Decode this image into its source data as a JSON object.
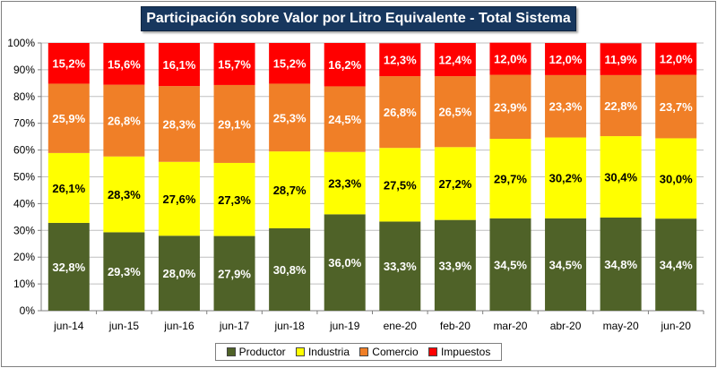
{
  "chart_data": {
    "type": "bar",
    "stacked": true,
    "title": "Participación sobre Valor por Litro Equivalente - Total Sistema",
    "categories": [
      "jun-14",
      "jun-15",
      "jun-16",
      "jun-17",
      "jun-18",
      "jun-19",
      "ene-20",
      "feb-20",
      "mar-20",
      "abr-20",
      "may-20",
      "jun-20"
    ],
    "ylim": [
      0,
      100
    ],
    "yticks": [
      "0%",
      "10%",
      "20%",
      "30%",
      "40%",
      "50%",
      "60%",
      "70%",
      "80%",
      "90%",
      "100%"
    ],
    "grid": true,
    "legend_position": "bottom",
    "series": [
      {
        "name": "Productor",
        "color": "#4f6228",
        "label_color": "#ffffff",
        "values": [
          32.8,
          29.3,
          28.0,
          27.9,
          30.8,
          36.0,
          33.3,
          33.9,
          34.5,
          34.5,
          34.8,
          34.4
        ],
        "labels": [
          "32,8%",
          "29,3%",
          "28,0%",
          "27,9%",
          "30,8%",
          "36,0%",
          "33,3%",
          "33,9%",
          "34,5%",
          "34,5%",
          "34,8%",
          "34,4%"
        ]
      },
      {
        "name": "Industria",
        "color": "#ffff00",
        "label_color": "#000000",
        "values": [
          26.1,
          28.3,
          27.6,
          27.3,
          28.7,
          23.3,
          27.5,
          27.2,
          29.7,
          30.2,
          30.4,
          30.0
        ],
        "labels": [
          "26,1%",
          "28,3%",
          "27,6%",
          "27,3%",
          "28,7%",
          "23,3%",
          "27,5%",
          "27,2%",
          "29,7%",
          "30,2%",
          "30,4%",
          "30,0%"
        ]
      },
      {
        "name": "Comercio",
        "color": "#f07f27",
        "label_color": "#ffffff",
        "values": [
          25.9,
          26.8,
          28.3,
          29.1,
          25.3,
          24.5,
          26.8,
          26.5,
          23.9,
          23.3,
          22.8,
          23.7
        ],
        "labels": [
          "25,9%",
          "26,8%",
          "28,3%",
          "29,1%",
          "25,3%",
          "24,5%",
          "26,8%",
          "26,5%",
          "23,9%",
          "23,3%",
          "22,8%",
          "23,7%"
        ]
      },
      {
        "name": "Impuestos",
        "color": "#ff0000",
        "label_color": "#ffffff",
        "values": [
          15.2,
          15.6,
          16.1,
          15.7,
          15.2,
          16.2,
          12.3,
          12.4,
          12.0,
          12.0,
          11.9,
          12.0
        ],
        "labels": [
          "15,2%",
          "15,6%",
          "16,1%",
          "15,7%",
          "15,2%",
          "16,2%",
          "12,3%",
          "12,4%",
          "12,0%",
          "12,0%",
          "11,9%",
          "12,0%"
        ]
      }
    ]
  }
}
